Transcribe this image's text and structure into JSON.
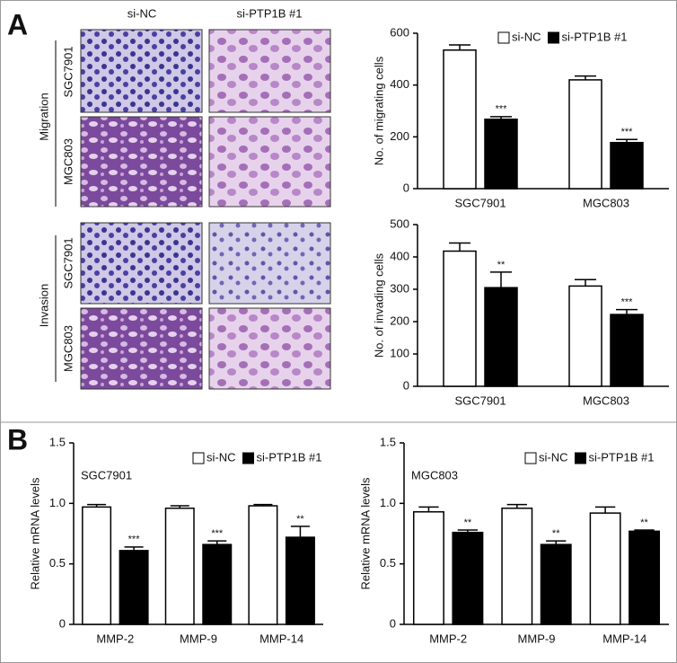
{
  "panels": {
    "a": "A",
    "b": "B"
  },
  "images": {
    "columns": [
      "si-NC",
      "si-PTP1B #1"
    ],
    "groups": [
      {
        "label": "Migration",
        "rows": [
          "SGC7901",
          "MGC803"
        ]
      },
      {
        "label": "Invasion",
        "rows": [
          "SGC7901",
          "MGC803"
        ]
      }
    ]
  },
  "chart_data": [
    {
      "type": "bar",
      "y_label": "No. of migrating cells",
      "categories": [
        "SGC7901",
        "MGC803"
      ],
      "series": [
        {
          "name": "si-NC",
          "color": "#ffffff",
          "values": [
            535,
            420
          ],
          "errors": [
            20,
            15
          ]
        },
        {
          "name": "si-PTP1B #1",
          "color": "#000000",
          "values": [
            268,
            178
          ],
          "errors": [
            10,
            12
          ],
          "annotations": [
            "***",
            "***"
          ]
        }
      ],
      "ylim": [
        0,
        600
      ],
      "yticks": [
        0,
        200,
        400,
        600
      ],
      "legend": "upper right"
    },
    {
      "type": "bar",
      "y_label": "No. of invading cells",
      "categories": [
        "SGC7901",
        "MGC803"
      ],
      "series": [
        {
          "color": "#ffffff",
          "values": [
            418,
            310
          ],
          "errors": [
            25,
            20
          ]
        },
        {
          "color": "#000000",
          "values": [
            305,
            222
          ],
          "errors": [
            48,
            15
          ],
          "annotations": [
            "**",
            "***"
          ]
        }
      ],
      "ylim": [
        0,
        500
      ],
      "yticks": [
        0,
        100,
        200,
        300,
        400,
        500
      ]
    },
    {
      "type": "bar",
      "subtitle": "SGC7901",
      "y_label": "Relative mRNA levels",
      "categories": [
        "MMP-2",
        "MMP-9",
        "MMP-14"
      ],
      "series": [
        {
          "name": "si-NC",
          "color": "#ffffff",
          "values": [
            0.97,
            0.96,
            0.98
          ],
          "errors": [
            0.02,
            0.02,
            0.01
          ]
        },
        {
          "name": "si-PTP1B #1",
          "color": "#000000",
          "values": [
            0.61,
            0.66,
            0.72
          ],
          "errors": [
            0.03,
            0.03,
            0.09
          ],
          "annotations": [
            "***",
            "***",
            "**"
          ]
        }
      ],
      "ylim": [
        0,
        1.5
      ],
      "yticks": [
        0,
        0.5,
        {
          "value": 1,
          "label": "1.0"
        },
        1.5
      ],
      "legend": "upper right"
    },
    {
      "type": "bar",
      "subtitle": "MGC803",
      "y_label": "Relative mRNA levels",
      "categories": [
        "MMP-2",
        "MMP-9",
        "MMP-14"
      ],
      "series": [
        {
          "name": "si-NC",
          "color": "#ffffff",
          "values": [
            0.93,
            0.96,
            0.92
          ],
          "errors": [
            0.04,
            0.03,
            0.05
          ]
        },
        {
          "name": "si-PTP1B #1",
          "color": "#000000",
          "values": [
            0.76,
            0.66,
            0.77
          ],
          "errors": [
            0.02,
            0.03,
            0.01
          ],
          "annotations": [
            "**",
            "**",
            "**"
          ]
        }
      ],
      "ylim": [
        0,
        1.5
      ],
      "yticks": [
        0,
        0.5,
        {
          "value": 1,
          "label": "1.0"
        },
        1.5
      ],
      "legend": "upper right"
    }
  ]
}
